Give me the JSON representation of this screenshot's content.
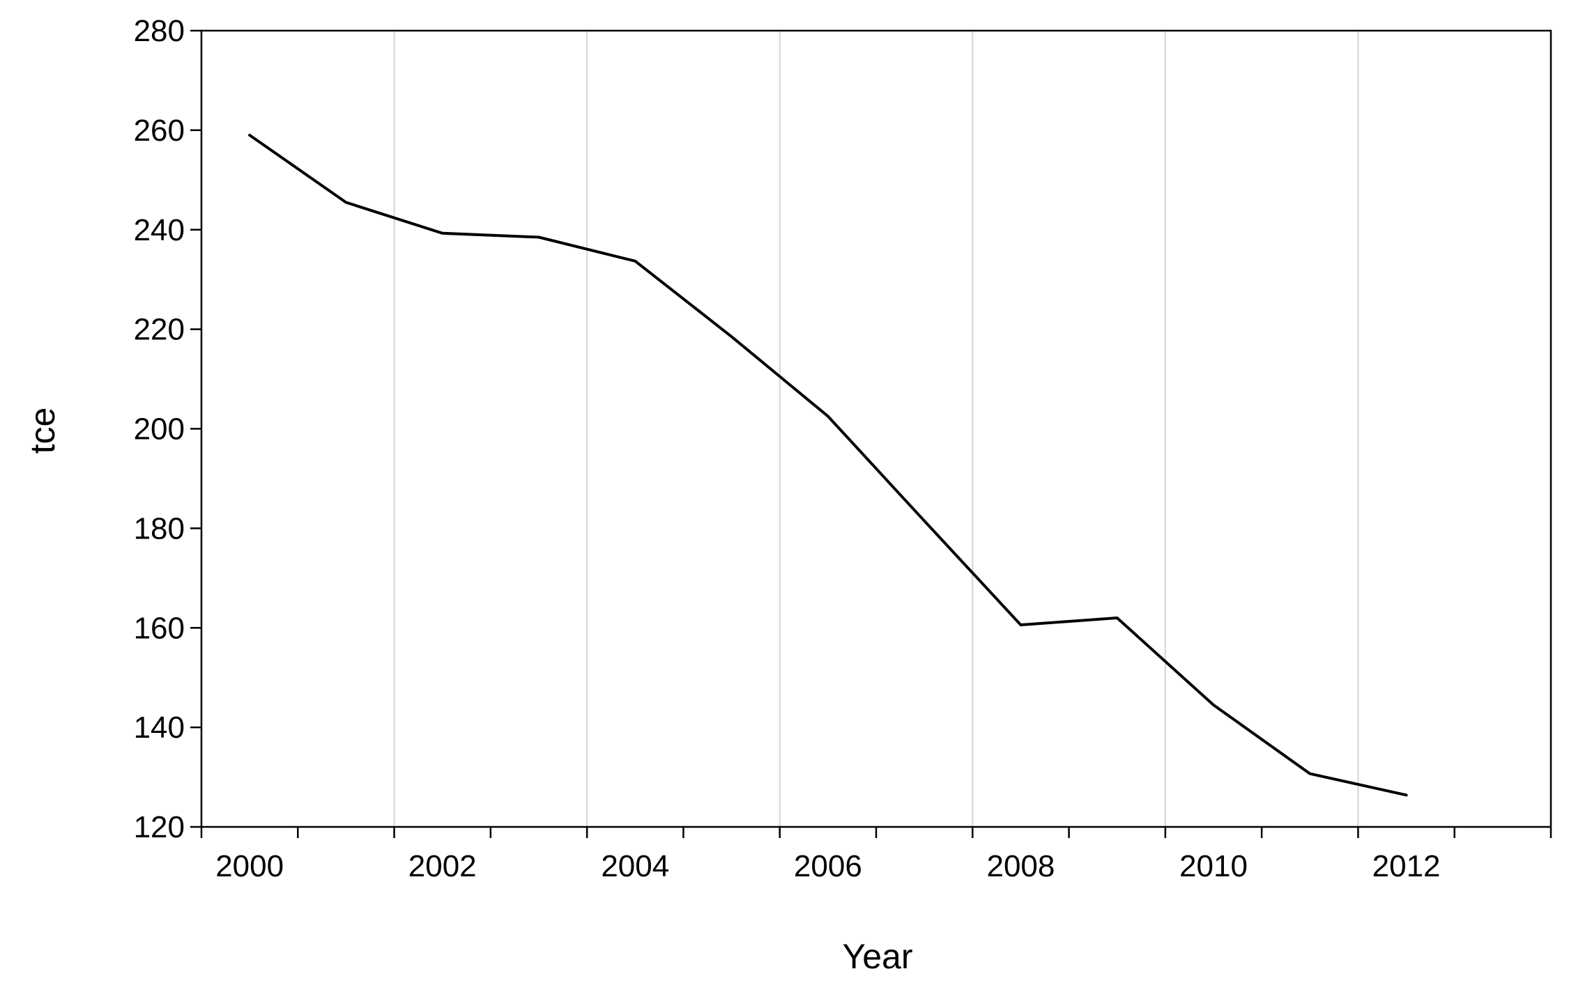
{
  "chart_data": {
    "type": "line",
    "title": "",
    "xlabel": "Year",
    "ylabel": "tce",
    "xlim": [
      2000,
      2014
    ],
    "ylim": [
      120,
      280
    ],
    "x_ticks": [
      2000,
      2002,
      2004,
      2006,
      2008,
      2010,
      2012
    ],
    "y_ticks": [
      120,
      140,
      160,
      180,
      200,
      220,
      240,
      260,
      280
    ],
    "grid": "vertical lines at labeled years",
    "legend": "none",
    "series": [
      {
        "color": "#000000",
        "points": [
          {
            "x": 2000.5,
            "y": 259.0
          },
          {
            "x": 2001.5,
            "y": 245.5
          },
          {
            "x": 2002.5,
            "y": 239.3
          },
          {
            "x": 2003.5,
            "y": 238.5
          },
          {
            "x": 2004.5,
            "y": 233.7
          },
          {
            "x": 2005.5,
            "y": 218.5
          },
          {
            "x": 2006.5,
            "y": 202.5
          },
          {
            "x": 2007.5,
            "y": 181.5
          },
          {
            "x": 2008.5,
            "y": 160.6
          },
          {
            "x": 2009.5,
            "y": 162.0
          },
          {
            "x": 2010.5,
            "y": 144.5
          },
          {
            "x": 2011.5,
            "y": 130.7
          },
          {
            "x": 2012.5,
            "y": 126.4
          }
        ]
      }
    ]
  }
}
